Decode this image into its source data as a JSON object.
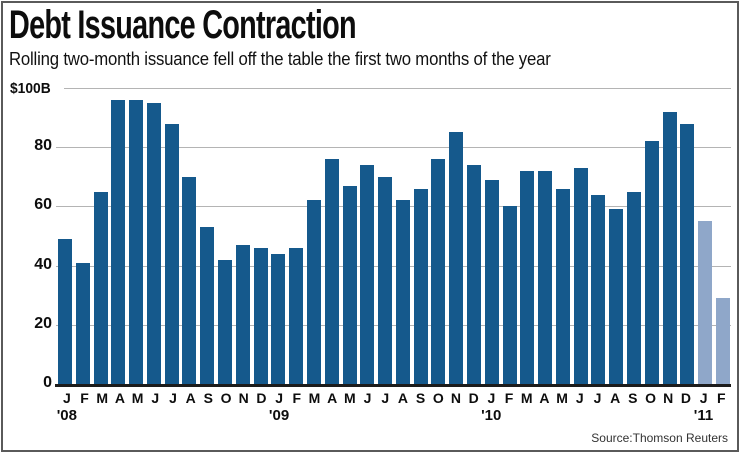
{
  "header": {
    "title": "Debt Issuance Contraction",
    "subtitle": "Rolling two-month issuance fell off the table the first two months of the year"
  },
  "source": "Source:Thomson Reuters",
  "colors": {
    "bar_dark": "#15598c",
    "bar_light": "#8fa7c9",
    "gridline": "#b4b4b4",
    "baseline": "#1c1c1c"
  },
  "chart_data": {
    "type": "bar",
    "title": "Debt Issuance Contraction",
    "subtitle": "Rolling two-month issuance fell off the table the first two months of the year",
    "unit": "billions of USD",
    "categories": [
      "J",
      "F",
      "M",
      "A",
      "M",
      "J",
      "J",
      "A",
      "S",
      "O",
      "N",
      "D",
      "J",
      "F",
      "M",
      "A",
      "M",
      "J",
      "J",
      "A",
      "S",
      "O",
      "N",
      "D",
      "J",
      "F",
      "M",
      "A",
      "M",
      "J",
      "J",
      "A",
      "S",
      "O",
      "N",
      "D",
      "J",
      "F"
    ],
    "values": [
      49,
      41,
      65,
      96,
      96,
      95,
      88,
      70,
      53,
      42,
      47,
      46,
      44,
      46,
      62,
      76,
      67,
      74,
      70,
      62,
      66,
      76,
      85,
      74,
      69,
      60,
      72,
      72,
      66,
      73,
      64,
      59,
      65,
      82,
      92,
      88,
      55,
      29
    ],
    "light_bar_indices": [
      36,
      37
    ],
    "year_marks": [
      {
        "index": 0,
        "label": "'08"
      },
      {
        "index": 12,
        "label": "'09"
      },
      {
        "index": 24,
        "label": "'10"
      },
      {
        "index": 36,
        "label": "'11"
      }
    ],
    "y_axis": {
      "top_label": "$100B",
      "ticks": [
        80,
        60,
        40,
        20,
        0
      ],
      "range": [
        0,
        100
      ],
      "grid_ticks": [
        100,
        80,
        60,
        40,
        20
      ]
    },
    "legend_position": "none",
    "grid": true
  }
}
